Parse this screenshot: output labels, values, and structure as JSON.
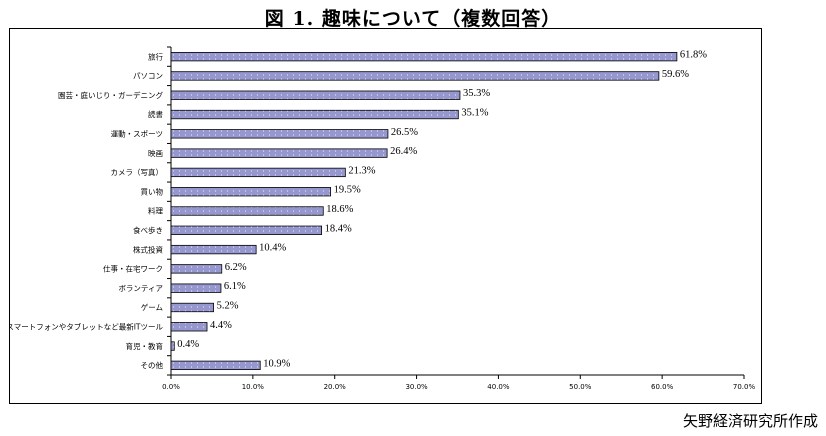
{
  "title": "図 1. 趣味について（複数回答）",
  "credit": "矢野経済研究所作成",
  "colors": {
    "bar_fill": "#9797d0",
    "bar_stroke": "#000000",
    "dot": "#ffffff"
  },
  "chart_data": {
    "type": "bar",
    "orientation": "horizontal",
    "categories": [
      "旅行",
      "パソコン",
      "園芸・庭いじり・ガーデニング",
      "読書",
      "運動・スポーツ",
      "映画",
      "カメラ（写真）",
      "買い物",
      "料理",
      "食べ歩き",
      "株式投資",
      "仕事・在宅ワーク",
      "ボランティア",
      "ゲーム",
      "スマートフォンやタブレットなど最新ITツール",
      "育児・教育",
      "その他"
    ],
    "values": [
      61.8,
      59.6,
      35.3,
      35.1,
      26.5,
      26.4,
      21.3,
      19.5,
      18.6,
      18.4,
      10.4,
      6.2,
      6.1,
      5.2,
      4.4,
      0.4,
      10.9
    ],
    "value_labels": [
      "61.8%",
      "59.6%",
      "35.3%",
      "35.1%",
      "26.5%",
      "26.4%",
      "21.3%",
      "19.5%",
      "18.6%",
      "18.4%",
      "10.4%",
      "6.2%",
      "6.1%",
      "5.2%",
      "4.4%",
      "0.4%",
      "10.9%"
    ],
    "xlim": [
      0,
      70
    ],
    "ticks": [
      0,
      10,
      20,
      30,
      40,
      50,
      60,
      70
    ],
    "tick_labels": [
      "0.0%",
      "10.0%",
      "20.0%",
      "30.0%",
      "40.0%",
      "50.0%",
      "60.0%",
      "70.0%"
    ],
    "grid": false,
    "legend": "none"
  }
}
